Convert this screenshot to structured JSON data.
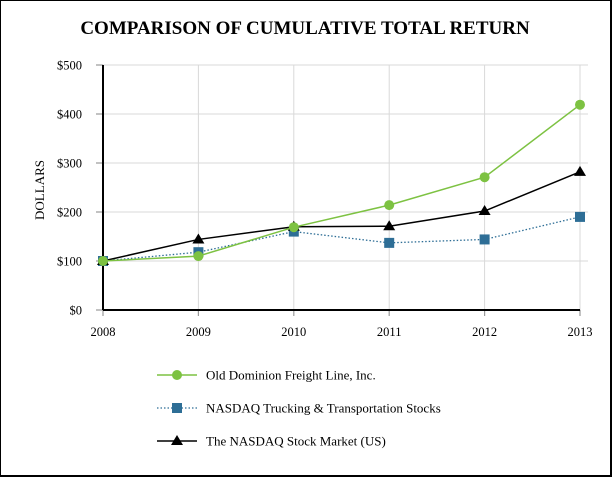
{
  "chart_data": {
    "type": "line",
    "title": "COMPARISON OF CUMULATIVE TOTAL RETURN",
    "xlabel": "",
    "ylabel": "DOLLARS",
    "x": [
      "2008",
      "2009",
      "2010",
      "2011",
      "2012",
      "2013"
    ],
    "ylim": [
      0,
      500
    ],
    "yticks": [
      0,
      100,
      200,
      300,
      400,
      500
    ],
    "ytick_labels": [
      "$0",
      "$100",
      "$200",
      "$300",
      "$400",
      "$500"
    ],
    "grid": true,
    "legend_position": "bottom",
    "series": [
      {
        "name": "Old Dominion Freight Line, Inc.",
        "values": [
          100,
          110,
          169,
          214,
          271,
          419
        ],
        "color": "#7dc242",
        "marker": "circle",
        "line_style": "solid"
      },
      {
        "name": "NASDAQ Trucking & Transportation Stocks",
        "values": [
          100,
          118,
          160,
          137,
          144,
          190
        ],
        "color": "#2e6e96",
        "marker": "square",
        "line_style": "dotted"
      },
      {
        "name": "The NASDAQ Stock Market (US)",
        "values": [
          100,
          144,
          170,
          171,
          202,
          282
        ],
        "color": "#000000",
        "marker": "triangle",
        "line_style": "solid"
      }
    ]
  }
}
